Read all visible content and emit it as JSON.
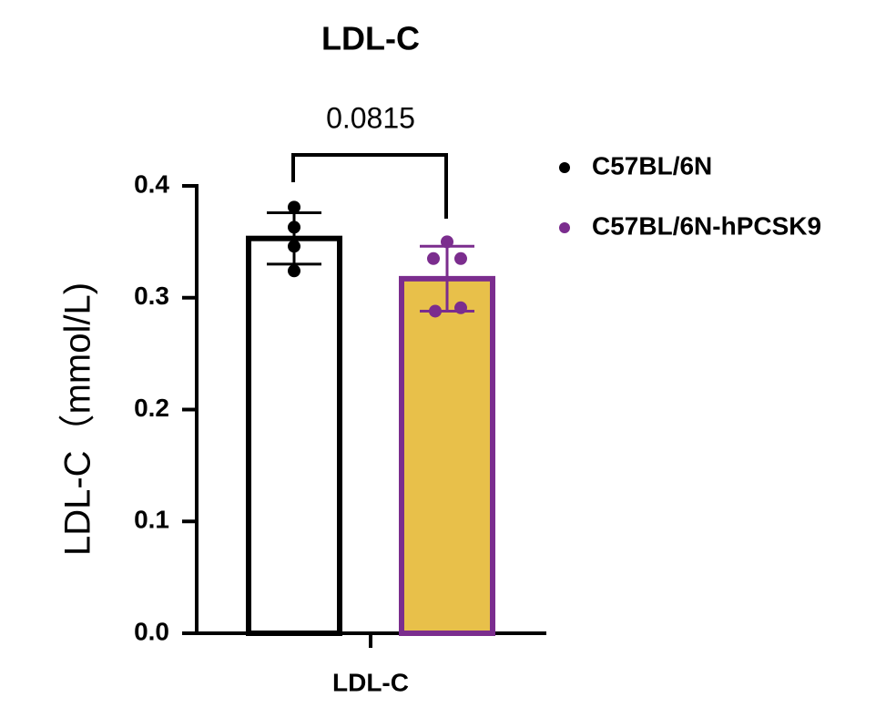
{
  "chart_data": {
    "type": "bar",
    "title": "LDL-C",
    "y_label": "LDL-C（mmol/L)",
    "categories": [
      "LDL-C"
    ],
    "series": [
      {
        "name": "C57BL/6N",
        "color": "#000000",
        "fill": "#ffffff",
        "values": [
          0.353
        ],
        "errors": [
          0.023
        ],
        "points": [
          0.381,
          0.363,
          0.346,
          0.324
        ]
      },
      {
        "name": "C57BL/6N-hPCSK9",
        "color": "#7b2d8e",
        "fill": "#e8c04a",
        "values": [
          0.317
        ],
        "errors": [
          0.029
        ],
        "points": [
          0.35,
          0.335,
          0.335,
          0.288,
          0.291
        ]
      }
    ],
    "annotation": "0.0815",
    "ylim": [
      0,
      0.4
    ],
    "yticks": [
      {
        "value": 0,
        "label": "0.0"
      },
      0.1,
      0.2,
      0.3,
      0.4
    ],
    "grid": false,
    "legend": "right"
  }
}
